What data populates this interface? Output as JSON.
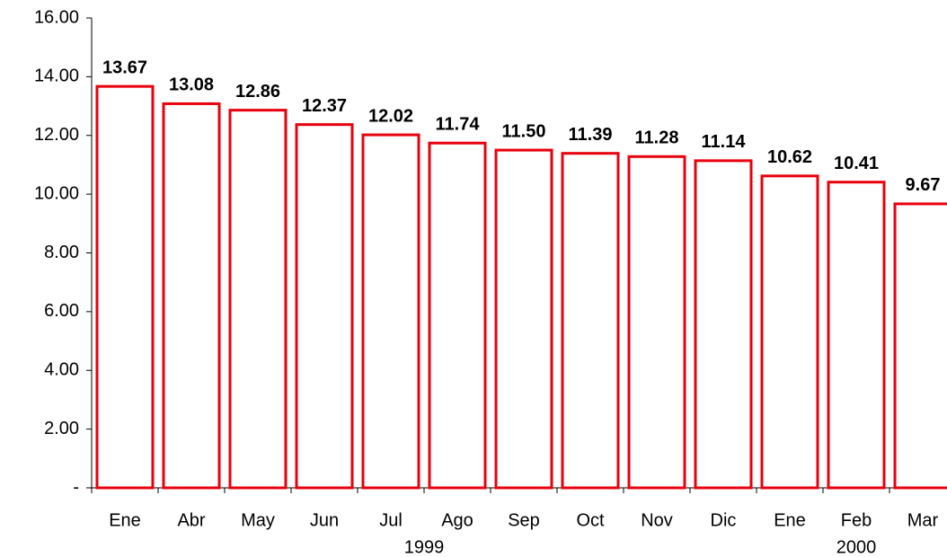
{
  "chart_data": {
    "type": "bar",
    "categories": [
      "Ene",
      "Abr",
      "May",
      "Jun",
      "Jul",
      "Ago",
      "Sep",
      "Oct",
      "Nov",
      "Dic",
      "Ene",
      "Feb",
      "Mar"
    ],
    "values": [
      13.67,
      13.08,
      12.86,
      12.37,
      12.02,
      11.74,
      11.5,
      11.39,
      11.28,
      11.14,
      10.62,
      10.41,
      9.67
    ],
    "value_labels": [
      "13.67",
      "13.08",
      "12.86",
      "12.37",
      "12.02",
      "11.74",
      "11.50",
      "11.39",
      "11.28",
      "11.14",
      "10.62",
      "10.41",
      "9.67"
    ],
    "groups": [
      {
        "label": "1999",
        "count": 10
      },
      {
        "label": "2000",
        "count": 3
      }
    ],
    "color": "#e8000d",
    "ylim": [
      0,
      16
    ],
    "yticks": [
      {
        "value": 0,
        "label": "-"
      },
      {
        "value": 2,
        "label": "2.00"
      },
      {
        "value": 4,
        "label": "4.00"
      },
      {
        "value": 6,
        "label": "6.00"
      },
      {
        "value": 8,
        "label": "8.00"
      },
      {
        "value": 10,
        "label": "10.00"
      },
      {
        "value": 12,
        "label": "12.00"
      },
      {
        "value": 14,
        "label": "14.00"
      },
      {
        "value": 16,
        "label": "16.00"
      }
    ]
  }
}
